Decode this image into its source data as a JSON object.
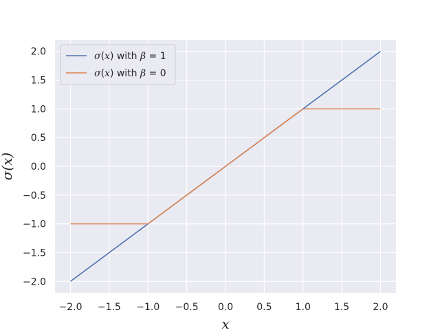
{
  "chart_data": {
    "type": "line",
    "xlim": [
      -2.2,
      2.2
    ],
    "ylim": [
      -2.2,
      2.2
    ],
    "grid": true,
    "legend_position": "upper-left",
    "xlabel": "x",
    "ylabel": "σ(x)",
    "x_ticks": [
      -2.0,
      -1.5,
      -1.0,
      -0.5,
      0.0,
      0.5,
      1.0,
      1.5,
      2.0
    ],
    "x_tick_labels": [
      "−2.0",
      "−1.5",
      "−1.0",
      "−0.5",
      "0.0",
      "0.5",
      "1.0",
      "1.5",
      "2.0"
    ],
    "y_ticks": [
      -2.0,
      -1.5,
      -1.0,
      -0.5,
      0.0,
      0.5,
      1.0,
      1.5,
      2.0
    ],
    "y_tick_labels": [
      "−2.0",
      "−1.5",
      "−1.0",
      "−0.5",
      "0.0",
      "0.5",
      "1.0",
      "1.5",
      "2.0"
    ],
    "series": [
      {
        "legend_parts": [
          "σ",
          "(",
          "x",
          ") with ",
          "β",
          " = 1"
        ],
        "color": "#4c72b0",
        "x": [
          -2.0,
          2.0
        ],
        "y": [
          -2.0,
          2.0
        ]
      },
      {
        "legend_parts": [
          "σ",
          "(",
          "x",
          ") with ",
          "β",
          " = 0"
        ],
        "color": "#dd8452",
        "x": [
          -2.0,
          -1.0,
          1.0,
          2.0
        ],
        "y": [
          -1.0,
          -1.0,
          1.0,
          1.0
        ]
      }
    ],
    "colors": {
      "plot_background": "#eaeaf2",
      "grid": "#ffffff",
      "text": "#262626"
    }
  }
}
